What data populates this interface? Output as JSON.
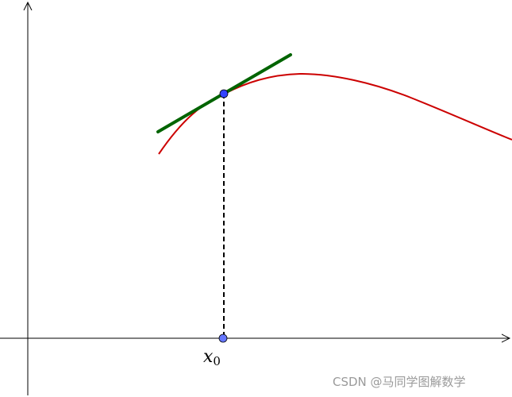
{
  "labels": {
    "x0_main": "x",
    "x0_sub": "0"
  },
  "watermark": "CSDN @马同学图解数学",
  "colors": {
    "curve": "#cc0000",
    "tangent": "#006400",
    "point_fill": "#3344ff",
    "axis": "#000000",
    "dashed": "#000000",
    "watermark": "#9a9a9a"
  }
}
